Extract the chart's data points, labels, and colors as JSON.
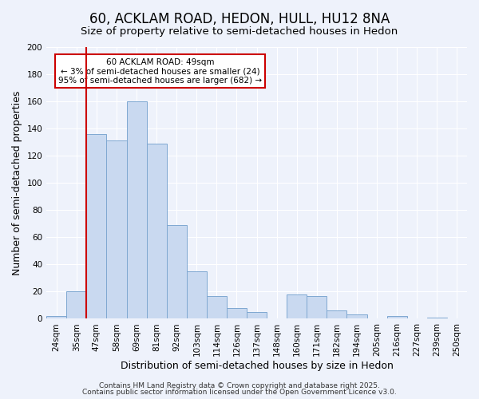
{
  "title": "60, ACKLAM ROAD, HEDON, HULL, HU12 8NA",
  "subtitle": "Size of property relative to semi-detached houses in Hedon",
  "xlabel": "Distribution of semi-detached houses by size in Hedon",
  "ylabel": "Number of semi-detached properties",
  "bin_labels": [
    "24sqm",
    "35sqm",
    "47sqm",
    "58sqm",
    "69sqm",
    "81sqm",
    "92sqm",
    "103sqm",
    "114sqm",
    "126sqm",
    "137sqm",
    "148sqm",
    "160sqm",
    "171sqm",
    "182sqm",
    "194sqm",
    "205sqm",
    "216sqm",
    "227sqm",
    "239sqm",
    "250sqm"
  ],
  "bar_values": [
    2,
    20,
    136,
    131,
    160,
    129,
    69,
    35,
    17,
    8,
    5,
    0,
    18,
    17,
    6,
    3,
    0,
    2,
    0,
    1,
    0
  ],
  "bar_color": "#c9d9f0",
  "bar_edge_color": "#7fa8d1",
  "ylim": [
    0,
    200
  ],
  "yticks": [
    0,
    20,
    40,
    60,
    80,
    100,
    120,
    140,
    160,
    180,
    200
  ],
  "vline_pos": 1.5,
  "vline_color": "#cc0000",
  "annotation_title": "60 ACKLAM ROAD: 49sqm",
  "annotation_line1": "← 3% of semi-detached houses are smaller (24)",
  "annotation_line2": "95% of semi-detached houses are larger (682) →",
  "annotation_box_color": "#ffffff",
  "annotation_box_edge": "#cc0000",
  "footer1": "Contains HM Land Registry data © Crown copyright and database right 2025.",
  "footer2": "Contains public sector information licensed under the Open Government Licence v3.0.",
  "bg_color": "#eef2fb",
  "grid_color": "#ffffff",
  "title_fontsize": 12,
  "subtitle_fontsize": 9.5,
  "axis_label_fontsize": 9,
  "tick_fontsize": 7.5,
  "footer_fontsize": 6.5
}
